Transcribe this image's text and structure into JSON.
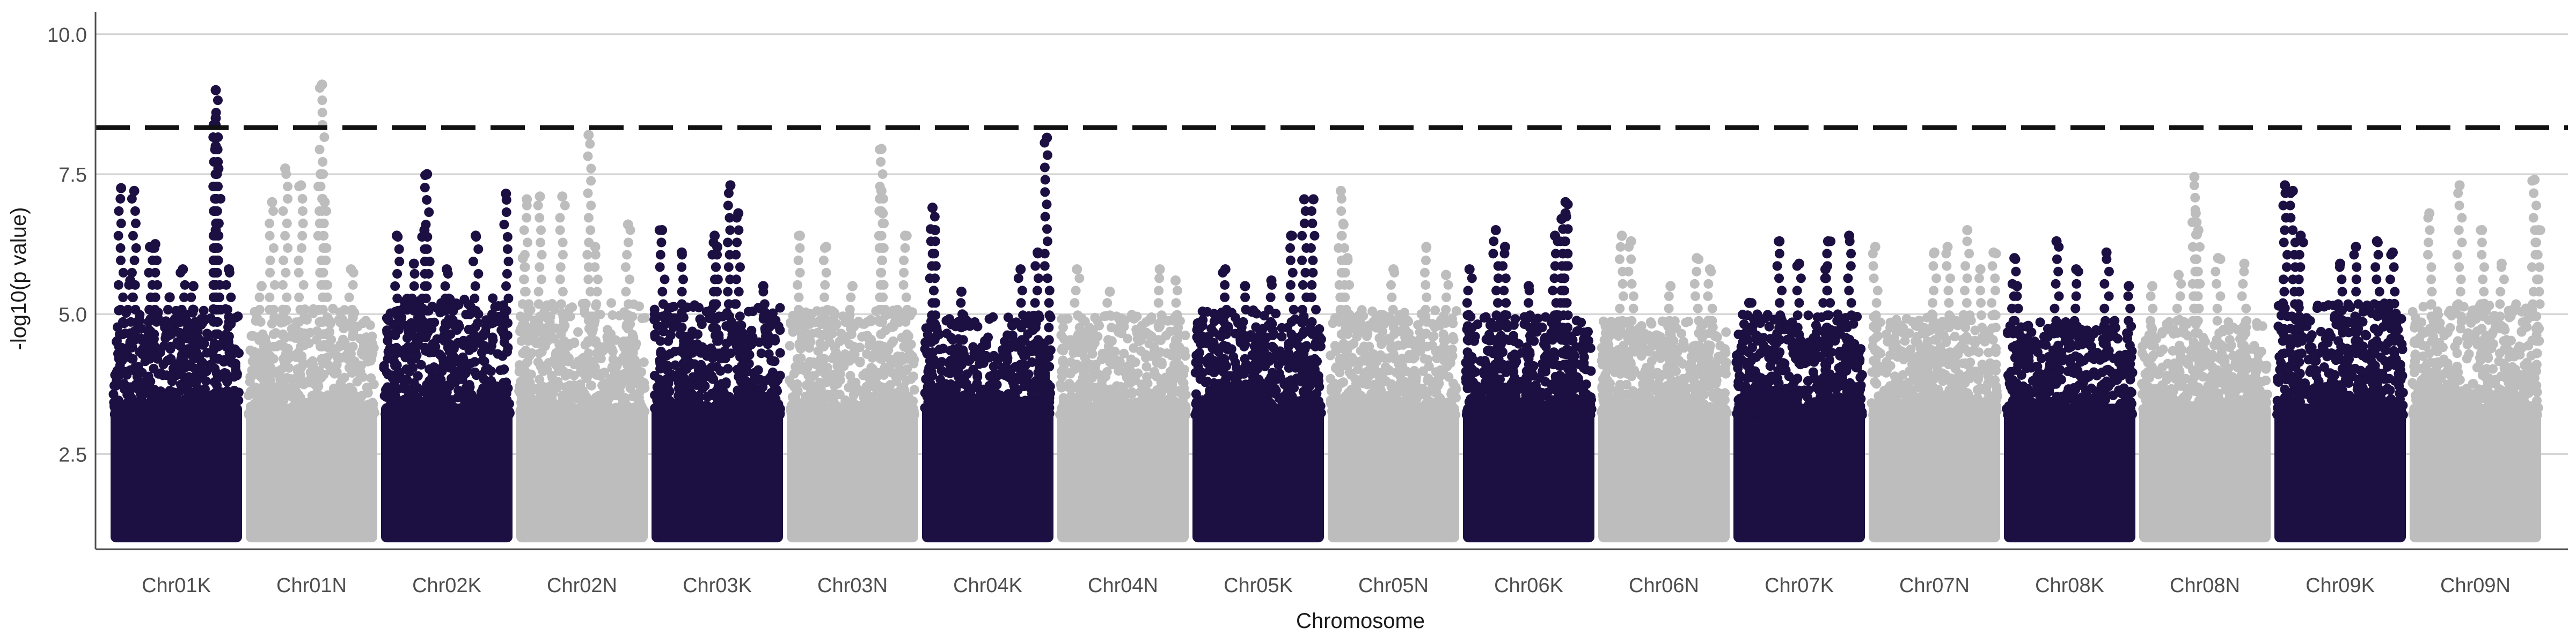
{
  "chart_data": {
    "type": "scatter",
    "subtype": "manhattan",
    "title": "",
    "xlabel": "Chromosome",
    "ylabel": "-log10(p value)",
    "ylim": [
      0.8,
      10.4
    ],
    "yticks": [
      2.5,
      5.0,
      7.5,
      10.0
    ],
    "ytick_labels": [
      "2.5",
      "5.0",
      "7.5",
      "10.0"
    ],
    "grid": "horizontal major only",
    "legend": "none",
    "threshold": {
      "value": 8.33,
      "style": "dashed",
      "color": "#111111"
    },
    "point_floor": 1.0,
    "colors": {
      "K": "#1c0f42",
      "N": "#bdbdbd",
      "grid": "#d2d2d2",
      "axis": "#4d4d4d"
    },
    "categories": [
      "Chr01K",
      "Chr01N",
      "Chr02K",
      "Chr02N",
      "Chr03K",
      "Chr03N",
      "Chr04K",
      "Chr04N",
      "Chr05K",
      "Chr05N",
      "Chr06K",
      "Chr06N",
      "Chr07K",
      "Chr07N",
      "Chr08K",
      "Chr08N",
      "Chr09K",
      "Chr09N"
    ],
    "series": [
      {
        "chromosome": "Chr01K",
        "color": "#1c0f42",
        "dense_to": 4.2,
        "peaks": [
          [
            0.08,
            7.25
          ],
          [
            0.18,
            7.2
          ],
          [
            0.3,
            6.2
          ],
          [
            0.34,
            6.25
          ],
          [
            0.55,
            5.8
          ],
          [
            0.63,
            5.5
          ],
          [
            0.8,
            9.0
          ],
          [
            0.8,
            8.5
          ],
          [
            0.8,
            8.0
          ],
          [
            0.82,
            7.6
          ],
          [
            0.8,
            6.5
          ],
          [
            0.9,
            5.8
          ],
          [
            0.15,
            5.6
          ],
          [
            0.45,
            5.3
          ]
        ]
      },
      {
        "chromosome": "Chr01N",
        "color": "#bdbdbd",
        "dense_to": 4.2,
        "peaks": [
          [
            0.2,
            7.0
          ],
          [
            0.3,
            7.6
          ],
          [
            0.42,
            7.3
          ],
          [
            0.58,
            9.1
          ],
          [
            0.57,
            7.5
          ],
          [
            0.6,
            7.0
          ],
          [
            0.12,
            5.5
          ],
          [
            0.8,
            5.8
          ]
        ]
      },
      {
        "chromosome": "Chr02K",
        "color": "#1c0f42",
        "dense_to": 4.4,
        "peaks": [
          [
            0.12,
            6.4
          ],
          [
            0.33,
            6.5
          ],
          [
            0.35,
            7.5
          ],
          [
            0.5,
            5.8
          ],
          [
            0.72,
            6.4
          ],
          [
            0.95,
            7.15
          ],
          [
            0.25,
            5.9
          ]
        ]
      },
      {
        "chromosome": "Chr02N",
        "color": "#bdbdbd",
        "dense_to": 4.3,
        "peaks": [
          [
            0.08,
            7.05
          ],
          [
            0.18,
            7.1
          ],
          [
            0.35,
            7.1
          ],
          [
            0.55,
            8.2
          ],
          [
            0.6,
            6.2
          ],
          [
            0.85,
            6.6
          ],
          [
            0.05,
            6.0
          ]
        ]
      },
      {
        "chromosome": "Chr03K",
        "color": "#1c0f42",
        "dense_to": 4.3,
        "peaks": [
          [
            0.08,
            6.5
          ],
          [
            0.23,
            6.1
          ],
          [
            0.48,
            6.4
          ],
          [
            0.6,
            7.3
          ],
          [
            0.66,
            6.8
          ],
          [
            0.5,
            6.2
          ],
          [
            0.85,
            5.5
          ]
        ]
      },
      {
        "chromosome": "Chr03N",
        "color": "#bdbdbd",
        "dense_to": 4.2,
        "peaks": [
          [
            0.1,
            6.4
          ],
          [
            0.3,
            6.2
          ],
          [
            0.72,
            7.95
          ],
          [
            0.72,
            7.2
          ],
          [
            0.73,
            6.8
          ],
          [
            0.9,
            6.4
          ],
          [
            0.5,
            5.5
          ]
        ]
      },
      {
        "chromosome": "Chr04K",
        "color": "#1c0f42",
        "dense_to": 4.1,
        "peaks": [
          [
            0.08,
            6.9
          ],
          [
            0.1,
            6.5
          ],
          [
            0.95,
            8.15
          ],
          [
            0.88,
            6.1
          ],
          [
            0.75,
            5.8
          ],
          [
            0.3,
            5.4
          ]
        ]
      },
      {
        "chromosome": "Chr04N",
        "color": "#bdbdbd",
        "dense_to": 4.1,
        "peaks": [
          [
            0.15,
            5.8
          ],
          [
            0.4,
            5.4
          ],
          [
            0.78,
            5.8
          ],
          [
            0.9,
            5.6
          ]
        ]
      },
      {
        "chromosome": "Chr05K",
        "color": "#1c0f42",
        "dense_to": 4.2,
        "peaks": [
          [
            0.25,
            5.8
          ],
          [
            0.75,
            6.4
          ],
          [
            0.85,
            7.05
          ],
          [
            0.92,
            7.05
          ],
          [
            0.6,
            5.6
          ],
          [
            0.4,
            5.5
          ]
        ]
      },
      {
        "chromosome": "Chr05N",
        "color": "#bdbdbd",
        "dense_to": 4.2,
        "peaks": [
          [
            0.1,
            7.2
          ],
          [
            0.12,
            6.6
          ],
          [
            0.15,
            6.0
          ],
          [
            0.5,
            5.8
          ],
          [
            0.75,
            6.2
          ],
          [
            0.9,
            5.7
          ]
        ]
      },
      {
        "chromosome": "Chr06K",
        "color": "#1c0f42",
        "dense_to": 4.1,
        "peaks": [
          [
            0.25,
            6.5
          ],
          [
            0.32,
            6.2
          ],
          [
            0.7,
            6.4
          ],
          [
            0.75,
            6.7
          ],
          [
            0.78,
            7.0
          ],
          [
            0.78,
            6.8
          ],
          [
            0.05,
            5.8
          ],
          [
            0.5,
            5.5
          ]
        ]
      },
      {
        "chromosome": "Chr06N",
        "color": "#bdbdbd",
        "dense_to": 4.0,
        "peaks": [
          [
            0.18,
            6.4
          ],
          [
            0.25,
            6.3
          ],
          [
            0.55,
            5.5
          ],
          [
            0.75,
            6.0
          ],
          [
            0.85,
            5.8
          ]
        ]
      },
      {
        "chromosome": "Chr07K",
        "color": "#1c0f42",
        "dense_to": 4.1,
        "peaks": [
          [
            0.12,
            5.2
          ],
          [
            0.35,
            6.3
          ],
          [
            0.5,
            5.9
          ],
          [
            0.7,
            5.8
          ],
          [
            0.88,
            6.4
          ],
          [
            0.72,
            6.3
          ]
        ]
      },
      {
        "chromosome": "Chr07N",
        "color": "#bdbdbd",
        "dense_to": 4.1,
        "peaks": [
          [
            0.05,
            6.2
          ],
          [
            0.5,
            6.1
          ],
          [
            0.6,
            6.2
          ],
          [
            0.75,
            6.5
          ],
          [
            0.85,
            5.8
          ],
          [
            0.95,
            6.1
          ]
        ]
      },
      {
        "chromosome": "Chr08K",
        "color": "#1c0f42",
        "dense_to": 4.0,
        "peaks": [
          [
            0.08,
            6.0
          ],
          [
            0.1,
            5.5
          ],
          [
            0.4,
            6.3
          ],
          [
            0.55,
            5.8
          ],
          [
            0.78,
            6.1
          ],
          [
            0.95,
            5.5
          ]
        ]
      },
      {
        "chromosome": "Chr08N",
        "color": "#bdbdbd",
        "dense_to": 4.0,
        "peaks": [
          [
            0.1,
            5.5
          ],
          [
            0.3,
            5.7
          ],
          [
            0.42,
            7.45
          ],
          [
            0.43,
            6.8
          ],
          [
            0.45,
            6.5
          ],
          [
            0.8,
            5.9
          ],
          [
            0.6,
            6.0
          ]
        ]
      },
      {
        "chromosome": "Chr09K",
        "color": "#1c0f42",
        "dense_to": 4.3,
        "peaks": [
          [
            0.08,
            7.3
          ],
          [
            0.14,
            7.2
          ],
          [
            0.2,
            6.4
          ],
          [
            0.62,
            6.2
          ],
          [
            0.78,
            6.3
          ],
          [
            0.9,
            6.1
          ],
          [
            0.5,
            5.9
          ]
        ]
      },
      {
        "chromosome": "Chr09N",
        "color": "#bdbdbd",
        "dense_to": 4.3,
        "peaks": [
          [
            0.15,
            6.8
          ],
          [
            0.38,
            7.3
          ],
          [
            0.55,
            6.5
          ],
          [
            0.95,
            7.4
          ],
          [
            0.98,
            6.5
          ],
          [
            0.7,
            5.9
          ]
        ]
      }
    ]
  }
}
